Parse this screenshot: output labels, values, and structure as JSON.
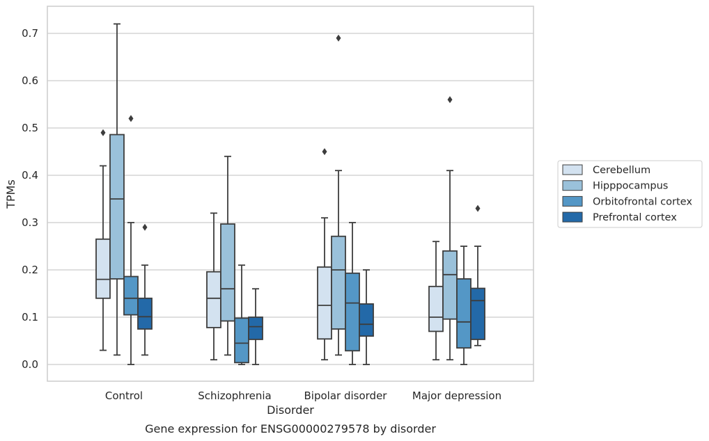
{
  "chart_data": {
    "type": "box",
    "title": "",
    "caption": "Gene expression for ENSG00000279578 by disorder",
    "xlabel": "Disorder",
    "ylabel": "TPMs",
    "ylim": [
      -0.035,
      0.755
    ],
    "yticks": [
      0.0,
      0.1,
      0.2,
      0.3,
      0.4,
      0.5,
      0.6,
      0.7
    ],
    "ytick_labels": [
      "0.0",
      "0.1",
      "0.2",
      "0.3",
      "0.4",
      "0.5",
      "0.6",
      "0.7"
    ],
    "grid": "horizontal",
    "legend_position": "right",
    "categories": [
      "Control",
      "Schizophrenia",
      "Bipolar disorder",
      "Major depression"
    ],
    "series": [
      {
        "name": "Cerebellum",
        "color": "#d3e2f0",
        "boxes": [
          {
            "low": 0.03,
            "q1": 0.14,
            "median": 0.18,
            "q3": 0.265,
            "high": 0.42,
            "outliers": [
              0.49
            ]
          },
          {
            "low": 0.01,
            "q1": 0.078,
            "median": 0.14,
            "q3": 0.196,
            "high": 0.32,
            "outliers": []
          },
          {
            "low": 0.01,
            "q1": 0.054,
            "median": 0.125,
            "q3": 0.206,
            "high": 0.31,
            "outliers": [
              0.45
            ]
          },
          {
            "low": 0.01,
            "q1": 0.07,
            "median": 0.1,
            "q3": 0.165,
            "high": 0.26,
            "outliers": []
          }
        ]
      },
      {
        "name": "Hipppocampus",
        "color": "#9ac1da",
        "boxes": [
          {
            "low": 0.02,
            "q1": 0.181,
            "median": 0.35,
            "q3": 0.486,
            "high": 0.72,
            "outliers": []
          },
          {
            "low": 0.02,
            "q1": 0.092,
            "median": 0.16,
            "q3": 0.297,
            "high": 0.44,
            "outliers": []
          },
          {
            "low": 0.02,
            "q1": 0.075,
            "median": 0.2,
            "q3": 0.271,
            "high": 0.41,
            "outliers": [
              0.69
            ]
          },
          {
            "low": 0.01,
            "q1": 0.096,
            "median": 0.19,
            "q3": 0.24,
            "high": 0.41,
            "outliers": [
              0.56
            ]
          }
        ]
      },
      {
        "name": "Orbitofrontal cortex",
        "color": "#5497c6",
        "boxes": [
          {
            "low": 0.0,
            "q1": 0.105,
            "median": 0.14,
            "q3": 0.186,
            "high": 0.3,
            "outliers": [
              0.52
            ]
          },
          {
            "low": 0.0,
            "q1": 0.004,
            "median": 0.045,
            "q3": 0.098,
            "high": 0.21,
            "outliers": []
          },
          {
            "low": 0.0,
            "q1": 0.029,
            "median": 0.13,
            "q3": 0.193,
            "high": 0.3,
            "outliers": []
          },
          {
            "low": 0.0,
            "q1": 0.035,
            "median": 0.09,
            "q3": 0.181,
            "high": 0.25,
            "outliers": []
          }
        ]
      },
      {
        "name": "Prefrontal cortex",
        "color": "#2369a8",
        "boxes": [
          {
            "low": 0.02,
            "q1": 0.075,
            "median": 0.101,
            "q3": 0.14,
            "high": 0.21,
            "outliers": [
              0.29
            ]
          },
          {
            "low": 0.0,
            "q1": 0.053,
            "median": 0.08,
            "q3": 0.1,
            "high": 0.16,
            "outliers": []
          },
          {
            "low": 0.0,
            "q1": 0.06,
            "median": 0.085,
            "q3": 0.128,
            "high": 0.2,
            "outliers": []
          },
          {
            "low": 0.04,
            "q1": 0.053,
            "median": 0.135,
            "q3": 0.161,
            "high": 0.25,
            "outliers": [
              0.33
            ]
          }
        ]
      }
    ]
  }
}
